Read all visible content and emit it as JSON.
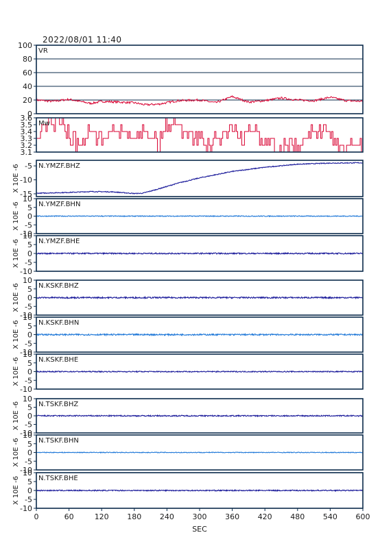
{
  "header": {
    "title": "2022/08/01 11:40"
  },
  "x_axis": {
    "label": "SEC",
    "ticks": [
      "0",
      "60",
      "120",
      "180",
      "240",
      "300",
      "360",
      "420",
      "480",
      "540",
      "600"
    ]
  },
  "colors": {
    "red": "#d80030",
    "navy": "#1a1a9a",
    "blue": "#1f78d8",
    "frame": "#0a2a4a",
    "grid": "#0a2a4a"
  },
  "chart_data": [
    {
      "type": "line",
      "name": "VR",
      "label": "VR",
      "xlim": [
        0,
        600
      ],
      "ylim": [
        0,
        100
      ],
      "yticks": [
        "0",
        "20",
        "40",
        "60",
        "80",
        "100"
      ],
      "grid": true,
      "color": "#d80030",
      "x": [
        0,
        30,
        60,
        80,
        100,
        120,
        150,
        180,
        200,
        225,
        260,
        300,
        330,
        360,
        390,
        420,
        450,
        480,
        510,
        540,
        570,
        600
      ],
      "y": [
        20,
        18,
        21,
        18,
        15,
        18,
        17,
        16,
        13,
        14,
        19,
        20,
        16,
        25,
        17,
        19,
        23,
        20,
        19,
        24,
        19,
        18
      ]
    },
    {
      "type": "line",
      "name": "Mw",
      "label": "Mw",
      "xlim": [
        0,
        600
      ],
      "ylim": [
        3.1,
        3.6
      ],
      "yticks": [
        "3.1",
        "3.2",
        "3.3",
        "3.4",
        "3.5",
        "3.6"
      ],
      "grid": false,
      "color": "#d80030",
      "x": [
        0,
        15,
        25,
        35,
        45,
        60,
        80,
        100,
        120,
        150,
        180,
        200,
        225,
        240,
        255,
        270,
        300,
        310,
        320,
        330,
        340,
        355,
        370,
        390,
        420,
        440,
        470,
        480,
        500,
        510,
        530,
        560,
        600
      ],
      "y": [
        3.3,
        3.4,
        3.6,
        3.5,
        3.6,
        3.3,
        3.2,
        3.4,
        3.3,
        3.4,
        3.3,
        3.4,
        3.2,
        3.5,
        3.6,
        3.4,
        3.3,
        3.1,
        3.2,
        3.3,
        3.2,
        3.5,
        3.3,
        3.4,
        3.3,
        3.1,
        3.2,
        3.1,
        3.4,
        3.3,
        3.4,
        3.2,
        3.2
      ]
    },
    {
      "type": "line",
      "name": "N.YMZF.BHZ",
      "label": "N.YMZF.BHZ",
      "ylabel": "X 10E -6",
      "xlim": [
        0,
        600
      ],
      "ylim": [
        -16,
        -3
      ],
      "yticks": [
        "-5",
        "-10",
        "-15"
      ],
      "ytick_values": [
        -5,
        -10,
        -15
      ],
      "grid": false,
      "color": "#1a1a9a",
      "x": [
        0,
        60,
        100,
        140,
        180,
        195,
        220,
        260,
        300,
        360,
        420,
        480,
        540,
        600
      ],
      "y": [
        -14.8,
        -14.5,
        -14.2,
        -14.3,
        -14.9,
        -14.8,
        -13.5,
        -11.2,
        -9.3,
        -7.0,
        -5.5,
        -4.4,
        -4.0,
        -3.9
      ],
      "noise": 0.15
    },
    {
      "type": "line",
      "name": "N.YMZF.BHN",
      "label": "N.YMZF.BHN",
      "ylabel": "X 10E -6",
      "xlim": [
        0,
        600
      ],
      "ylim": [
        -10,
        10
      ],
      "yticks": [
        "-10",
        "-5",
        "0",
        "5",
        "10"
      ],
      "ytick_values": [
        -10,
        -5,
        0,
        5,
        10
      ],
      "grid": false,
      "color": "#1f78d8",
      "x": [
        0,
        600
      ],
      "y": [
        0,
        0
      ],
      "noise": 0.25
    },
    {
      "type": "line",
      "name": "N.YMZF.BHE",
      "label": "N.YMZF.BHE",
      "ylabel": "X 10E -6",
      "xlim": [
        0,
        600
      ],
      "ylim": [
        -10,
        10
      ],
      "yticks": [
        "-10",
        "-5",
        "0",
        "5",
        "10"
      ],
      "ytick_values": [
        -10,
        -5,
        0,
        5,
        10
      ],
      "grid": false,
      "color": "#1a1a9a",
      "x": [
        0,
        600
      ],
      "y": [
        0,
        0
      ],
      "noise": 0.35
    },
    {
      "type": "line",
      "name": "N.KSKF.BHZ",
      "label": "N.KSKF.BHZ",
      "ylabel": "X 10E -6",
      "xlim": [
        0,
        600
      ],
      "ylim": [
        -10,
        10
      ],
      "yticks": [
        "-10",
        "-5",
        "0",
        "5",
        "10"
      ],
      "ytick_values": [
        -10,
        -5,
        0,
        5,
        10
      ],
      "grid": false,
      "color": "#1a1a9a",
      "x": [
        0,
        600
      ],
      "y": [
        0,
        0
      ],
      "noise": 0.4
    },
    {
      "type": "line",
      "name": "N.KSKF.BHN",
      "label": "N.KSKF.BHN",
      "ylabel": "X 10E -6",
      "xlim": [
        0,
        600
      ],
      "ylim": [
        -10,
        10
      ],
      "yticks": [
        "-10",
        "-5",
        "0",
        "5",
        "10"
      ],
      "ytick_values": [
        -10,
        -5,
        0,
        5,
        10
      ],
      "grid": false,
      "color": "#1f78d8",
      "x": [
        0,
        600
      ],
      "y": [
        0,
        0
      ],
      "noise": 0.4
    },
    {
      "type": "line",
      "name": "N.KSKF.BHE",
      "label": "N.KSKF.BHE",
      "ylabel": "X 10E -6",
      "xlim": [
        0,
        600
      ],
      "ylim": [
        -10,
        10
      ],
      "yticks": [
        "-10",
        "-5",
        "0",
        "5",
        "10"
      ],
      "ytick_values": [
        -10,
        -5,
        0,
        5,
        10
      ],
      "grid": false,
      "color": "#1a1a9a",
      "x": [
        0,
        600
      ],
      "y": [
        0,
        0
      ],
      "noise": 0.3
    },
    {
      "type": "line",
      "name": "N.TSKF.BHZ",
      "label": "N.TSKF.BHZ",
      "ylabel": "X 10E -6",
      "xlim": [
        0,
        600
      ],
      "ylim": [
        -10,
        10
      ],
      "yticks": [
        "-10",
        "-5",
        "0",
        "5",
        "10"
      ],
      "ytick_values": [
        -10,
        -5,
        0,
        5,
        10
      ],
      "grid": false,
      "color": "#1a1a9a",
      "x": [
        0,
        600
      ],
      "y": [
        0,
        0
      ],
      "noise": 0.35
    },
    {
      "type": "line",
      "name": "N.TSKF.BHN",
      "label": "N.TSKF.BHN",
      "ylabel": "X 10E -6",
      "xlim": [
        0,
        600
      ],
      "ylim": [
        -10,
        10
      ],
      "yticks": [
        "-10",
        "-5",
        "0",
        "5",
        "10"
      ],
      "ytick_values": [
        -10,
        -5,
        0,
        5,
        10
      ],
      "grid": false,
      "color": "#1f78d8",
      "x": [
        0,
        600
      ],
      "y": [
        0,
        0
      ],
      "noise": 0.2
    },
    {
      "type": "line",
      "name": "N.TSKF.BHE",
      "label": "N.TSKF.BHE",
      "ylabel": "X 10E -6",
      "xlim": [
        0,
        600
      ],
      "ylim": [
        -10,
        10
      ],
      "yticks": [
        "-10",
        "-5",
        "0",
        "5",
        "10"
      ],
      "ytick_values": [
        -10,
        -5,
        0,
        5,
        10
      ],
      "grid": false,
      "color": "#1a1a9a",
      "x": [
        0,
        600
      ],
      "y": [
        0,
        0
      ],
      "noise": 0.3
    }
  ]
}
